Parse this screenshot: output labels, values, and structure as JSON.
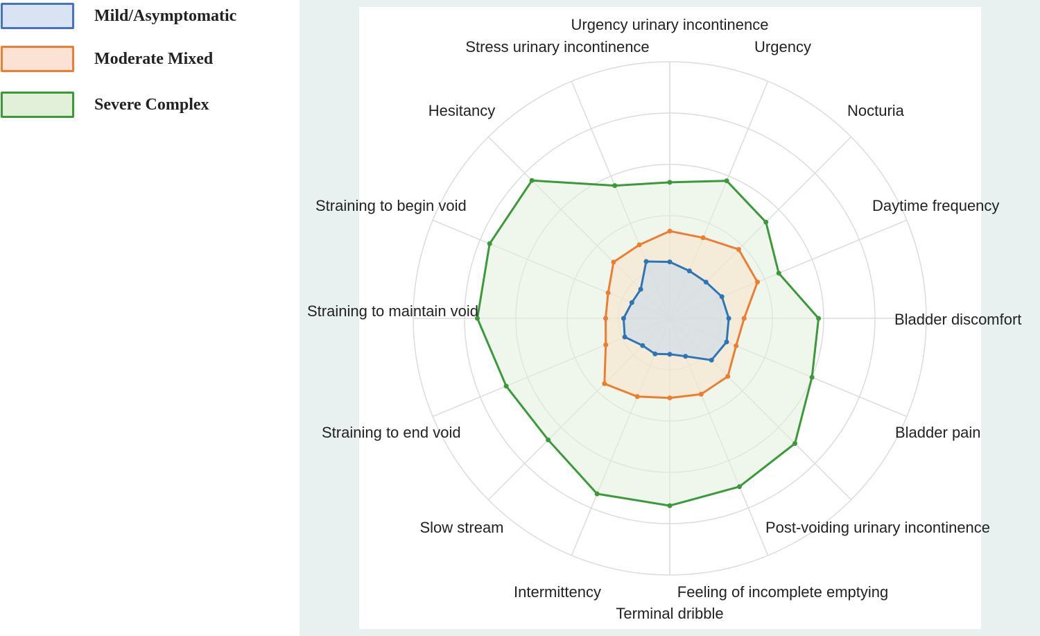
{
  "legend": {
    "items": [
      {
        "label": "Mild/Asymptomatic",
        "stroke": "#4472c4",
        "fill": "#dae3f3"
      },
      {
        "label": "Moderate Mixed",
        "stroke": "#ed7d31",
        "fill": "#fbe2d5"
      },
      {
        "label": "Severe Complex",
        "stroke": "#3a9a3a",
        "fill": "#e2f0d9"
      }
    ]
  },
  "chart_data": {
    "type": "radar",
    "categories": [
      "Urgency urinary incontinence",
      "Urgency",
      "Nocturia",
      "Daytime frequency",
      "Bladder discomfort",
      "Bladder pain",
      "Post-voiding urinary incontinence",
      "Feeling of incomplete emptying",
      "Terminal dribble",
      "Intermittency",
      "Slow stream",
      "Straining to end void",
      "Straining to maintain void",
      "Straining to begin void",
      "Hesitancy",
      "Stress urinary incontinence"
    ],
    "series": [
      {
        "name": "Mild/Asymptomatic",
        "color": "#2e75b6",
        "fill": "#c9d8ee",
        "values": [
          0.22,
          0.2,
          0.2,
          0.22,
          0.23,
          0.24,
          0.23,
          0.16,
          0.14,
          0.15,
          0.15,
          0.19,
          0.18,
          0.16,
          0.16,
          0.24
        ]
      },
      {
        "name": "Moderate Mixed",
        "color": "#ed7d31",
        "fill": "#f7e2c9",
        "values": [
          0.34,
          0.34,
          0.38,
          0.37,
          0.29,
          0.28,
          0.32,
          0.32,
          0.31,
          0.33,
          0.36,
          0.27,
          0.25,
          0.26,
          0.31,
          0.31
        ]
      },
      {
        "name": "Severe Complex",
        "color": "#3a9a3a",
        "fill": "#e2efdb",
        "values": [
          0.53,
          0.58,
          0.53,
          0.46,
          0.58,
          0.6,
          0.69,
          0.71,
          0.73,
          0.74,
          0.67,
          0.69,
          0.75,
          0.76,
          0.76,
          0.56
        ]
      }
    ],
    "rlim": [
      0,
      1
    ],
    "rings": [
      0.2,
      0.4,
      0.6,
      0.8,
      1.0
    ],
    "grid": true,
    "legend_position": "top-left"
  }
}
